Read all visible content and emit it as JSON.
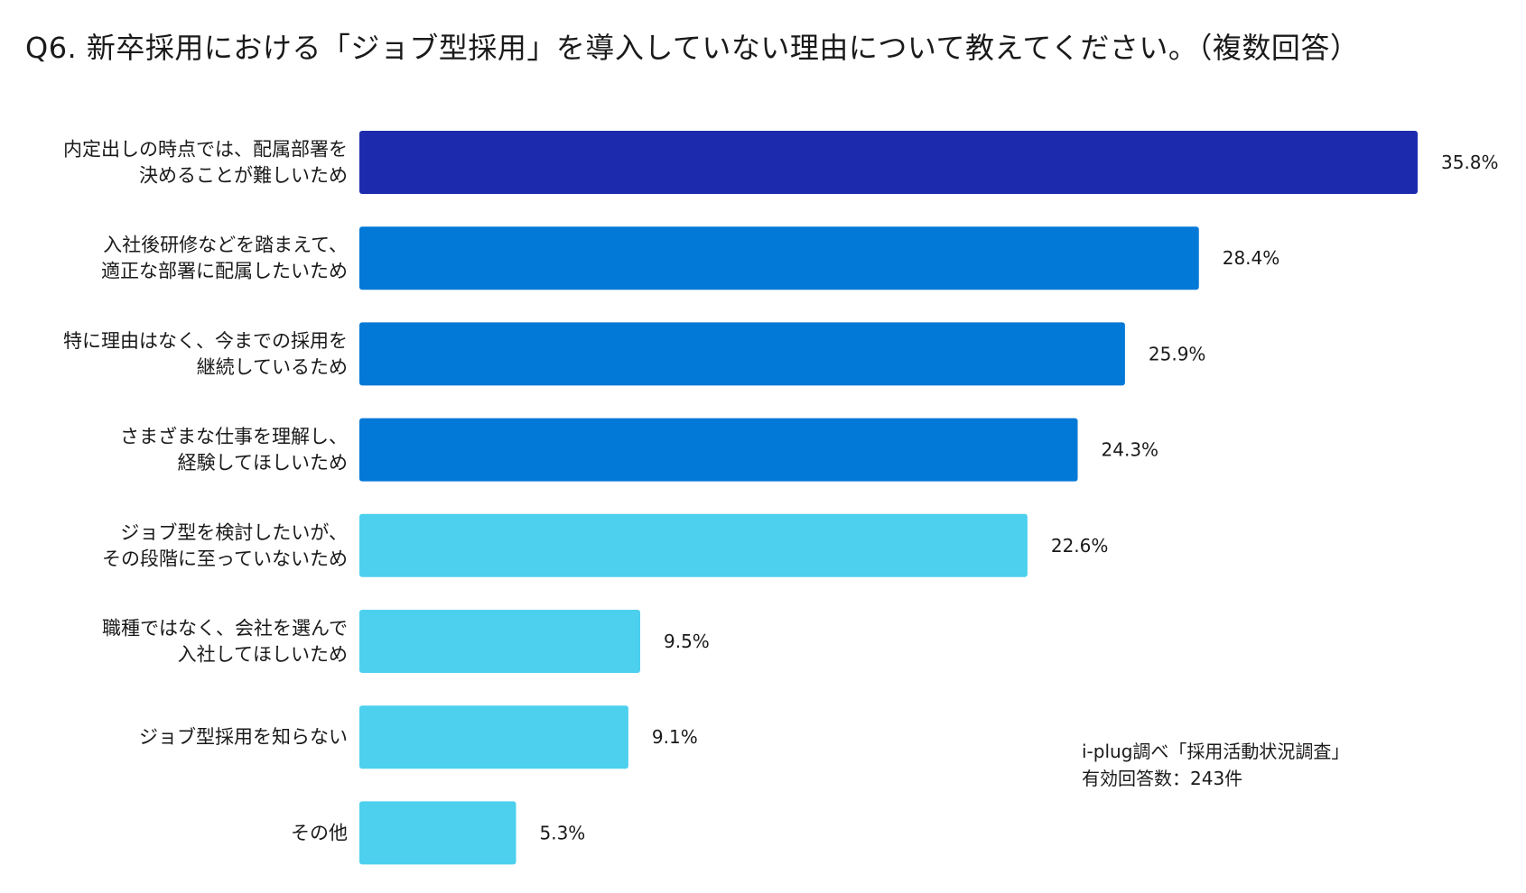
{
  "title": "Q6. 新卒採用における「ジョブ型採用」を導入していない理由について教えてください。（複数回答）",
  "chart_data": {
    "type": "bar",
    "orientation": "horizontal",
    "title": "Q6. 新卒採用における「ジョブ型採用」を導入していない理由について教えてください。（複数回答）",
    "unit": "%",
    "categories": [
      [
        "内定出しの時点では、配属部署を",
        "決めることが難しいため"
      ],
      [
        "入社後研修などを踏まえて、",
        "適正な部署に配属したいため"
      ],
      [
        "特に理由はなく、今までの採用を",
        "継続しているため"
      ],
      [
        "さまざまな仕事を理解し、",
        "経験してほしいため"
      ],
      [
        "ジョブ型を検討したいが、",
        "その段階に至っていないため"
      ],
      [
        "職種ではなく、会社を選んで",
        "入社してほしいため"
      ],
      [
        "ジョブ型採用を知らない"
      ],
      [
        "その他"
      ]
    ],
    "values": [
      35.8,
      28.4,
      25.9,
      24.3,
      22.6,
      9.5,
      9.1,
      5.3
    ],
    "value_labels": [
      "35.8%",
      "28.4%",
      "25.9%",
      "24.3%",
      "22.6%",
      "9.5%",
      "9.1%",
      "5.3%"
    ],
    "colors": [
      "#1c2bad",
      "#0278d7",
      "#0278d7",
      "#0278d7",
      "#4cd0ee",
      "#4cd0ee",
      "#4cd0ee",
      "#4cd0ee"
    ],
    "xlim": [
      0,
      35.8
    ],
    "grid": false,
    "legend": "none"
  },
  "source": {
    "line1": "i-plug調べ「採用活動状況調査」",
    "line2": "有効回答数：243件"
  }
}
